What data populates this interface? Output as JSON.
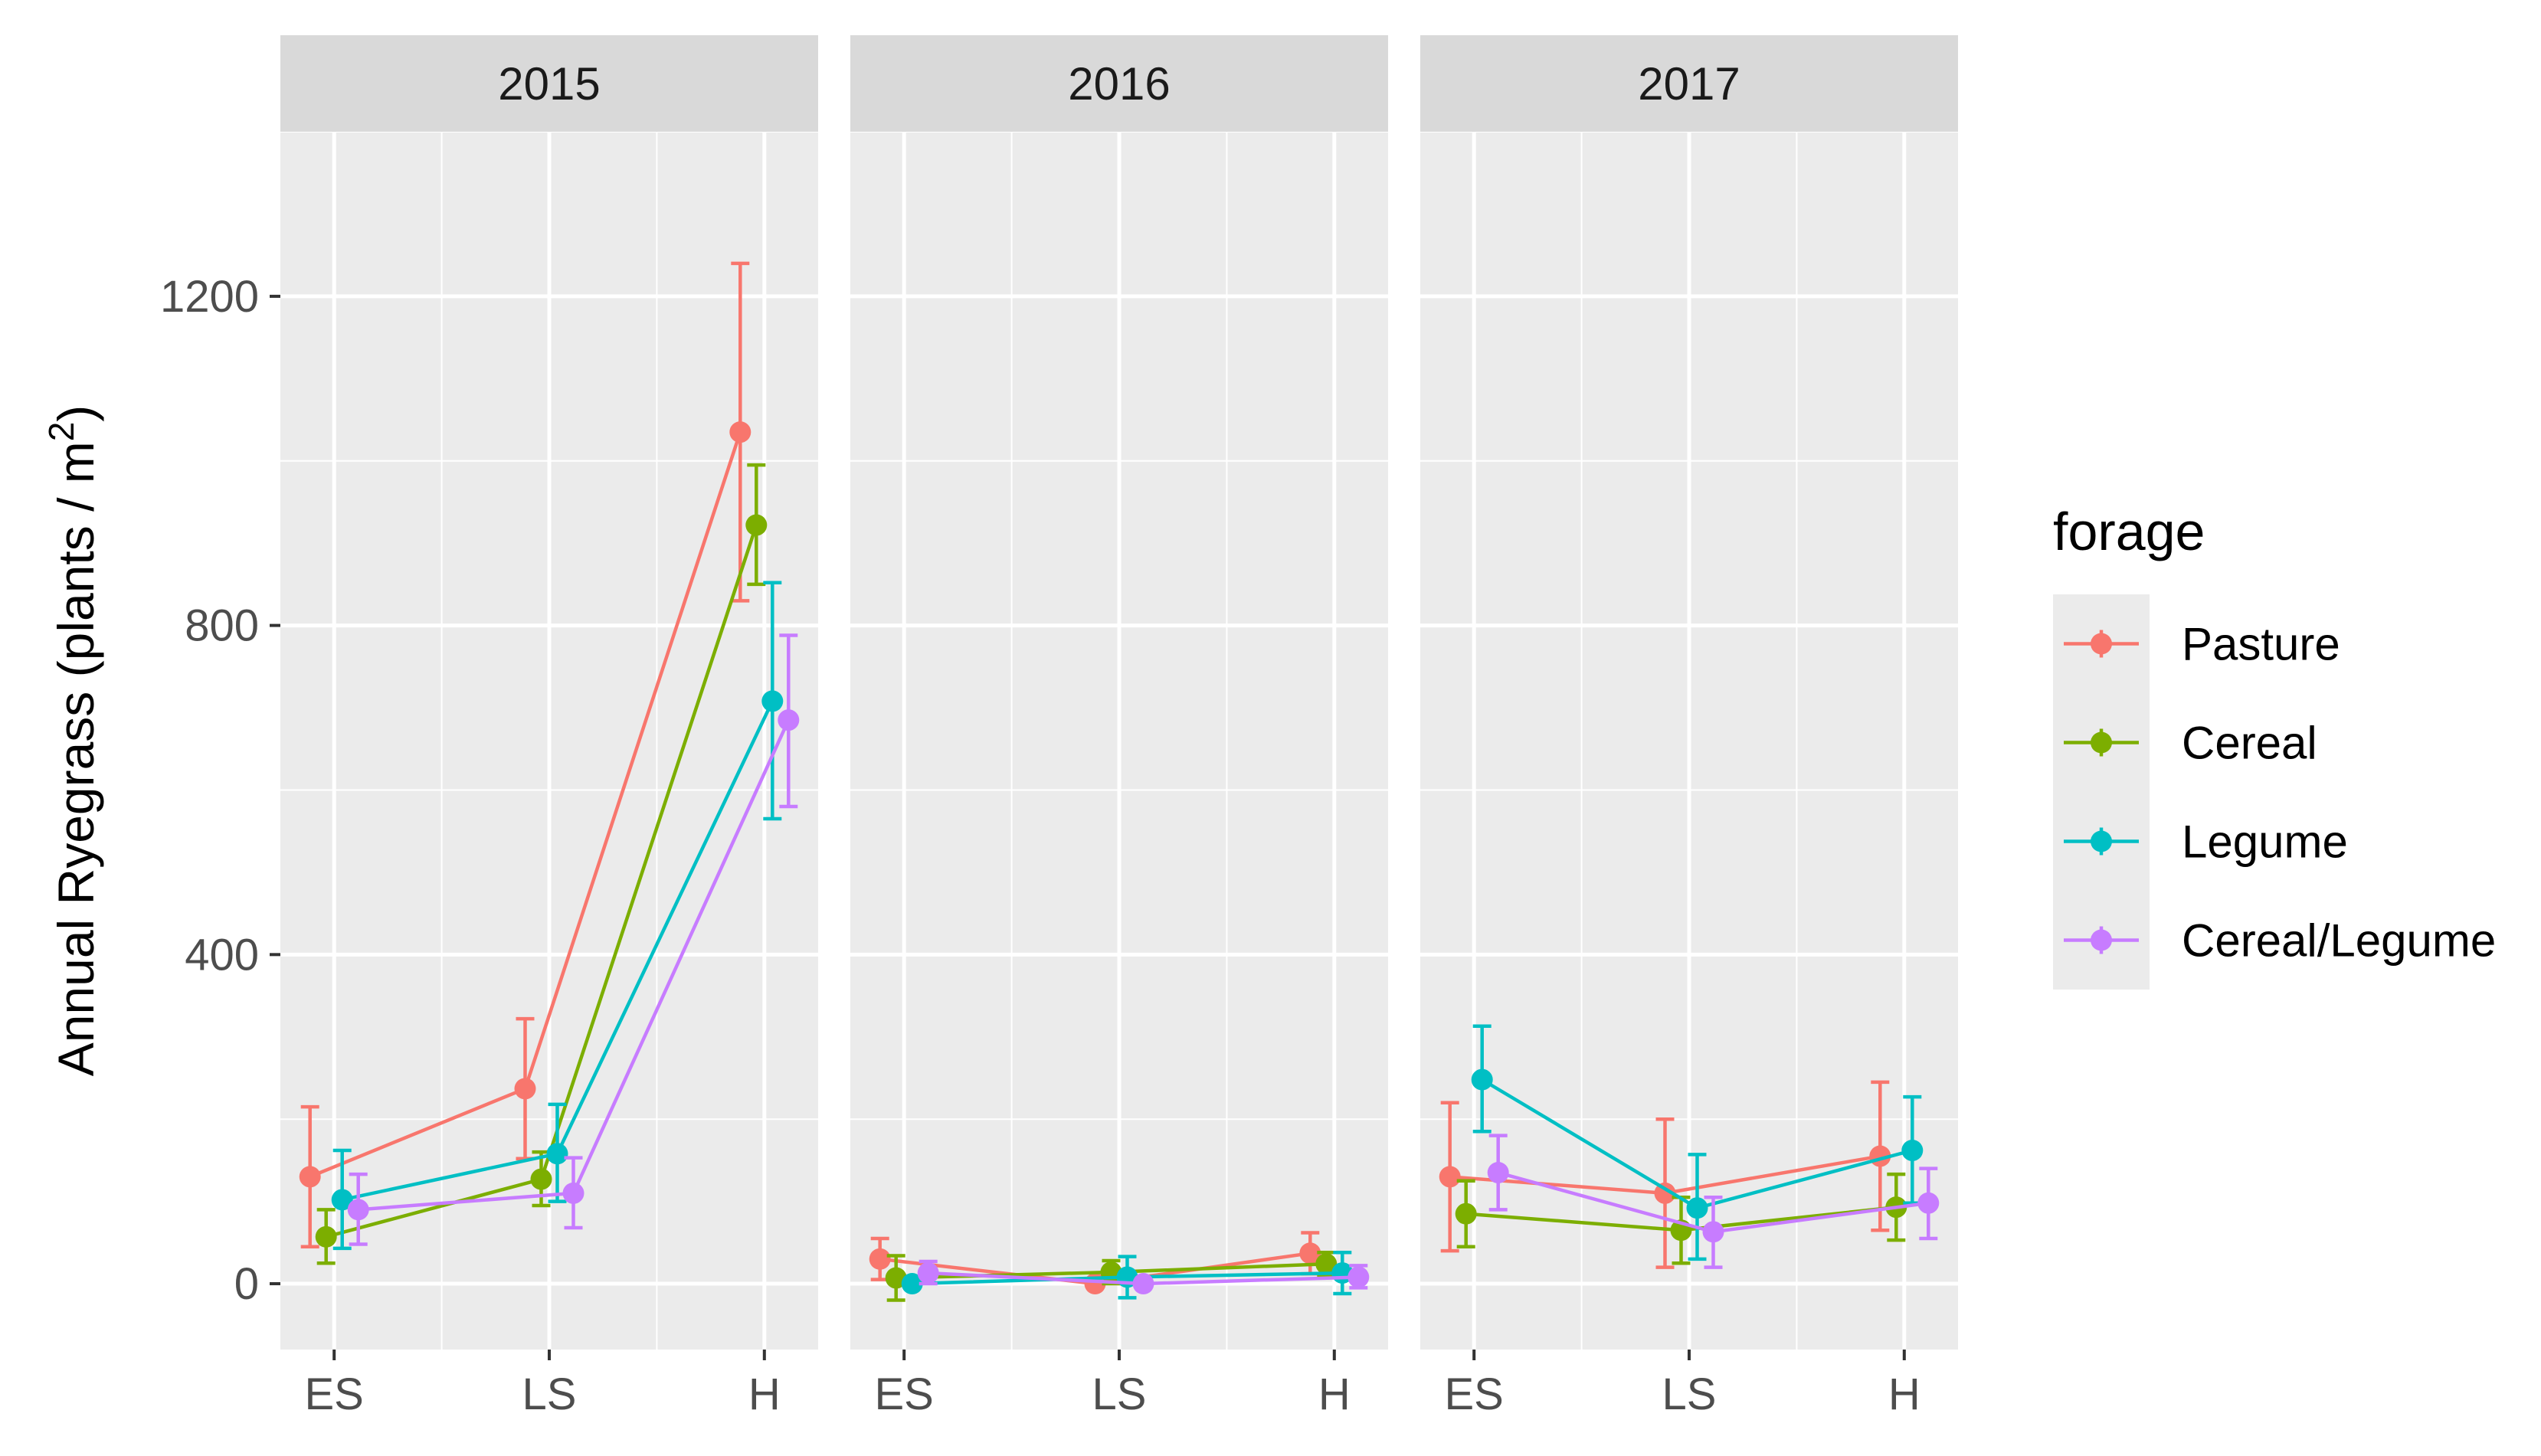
{
  "chart_data": {
    "type": "line",
    "facet_variable": "year",
    "panels": [
      "2015",
      "2016",
      "2017"
    ],
    "categories": [
      "ES",
      "LS",
      "H"
    ],
    "ylabel_main": "Annual Ryegrass (plants / m",
    "ylabel_sup": "2",
    "ylabel_tail": ")",
    "xlabel": "",
    "ylim": [
      -80,
      1400
    ],
    "yticks": [
      0,
      400,
      800,
      1200
    ],
    "ytick_labels": [
      "0",
      "400",
      "800",
      "1200"
    ],
    "legend_title": "forage",
    "legend_position": "right",
    "series": [
      {
        "name": "Pasture",
        "color": "#F8766D",
        "data": {
          "2015": [
            {
              "y": 130,
              "lo": 45,
              "hi": 215
            },
            {
              "y": 237,
              "lo": 152,
              "hi": 322
            },
            {
              "y": 1035,
              "lo": 830,
              "hi": 1240
            }
          ],
          "2016": [
            {
              "y": 30,
              "lo": 5,
              "hi": 55
            },
            {
              "y": 0,
              "lo": 0,
              "hi": 0
            },
            {
              "y": 37,
              "lo": 12,
              "hi": 62
            }
          ],
          "2017": [
            {
              "y": 130,
              "lo": 40,
              "hi": 220
            },
            {
              "y": 110,
              "lo": 20,
              "hi": 200
            },
            {
              "y": 155,
              "lo": 65,
              "hi": 245
            }
          ]
        }
      },
      {
        "name": "Cereal",
        "color": "#7CAE00",
        "data": {
          "2015": [
            {
              "y": 57,
              "lo": 25,
              "hi": 90
            },
            {
              "y": 127,
              "lo": 95,
              "hi": 160
            },
            {
              "y": 922,
              "lo": 850,
              "hi": 995
            }
          ],
          "2016": [
            {
              "y": 7,
              "lo": -20,
              "hi": 34
            },
            {
              "y": 14,
              "lo": 0,
              "hi": 28
            },
            {
              "y": 24,
              "lo": 10,
              "hi": 38
            }
          ],
          "2017": [
            {
              "y": 85,
              "lo": 45,
              "hi": 125
            },
            {
              "y": 65,
              "lo": 25,
              "hi": 105
            },
            {
              "y": 93,
              "lo": 53,
              "hi": 133
            }
          ]
        }
      },
      {
        "name": "Legume",
        "color": "#00BFC4",
        "data": {
          "2015": [
            {
              "y": 102,
              "lo": 43,
              "hi": 162
            },
            {
              "y": 158,
              "lo": 100,
              "hi": 218
            },
            {
              "y": 708,
              "lo": 565,
              "hi": 852
            }
          ],
          "2016": [
            {
              "y": 0,
              "lo": 0,
              "hi": 0
            },
            {
              "y": 8,
              "lo": -17,
              "hi": 33
            },
            {
              "y": 13,
              "lo": -12,
              "hi": 38
            }
          ],
          "2017": [
            {
              "y": 248,
              "lo": 185,
              "hi": 313
            },
            {
              "y": 92,
              "lo": 30,
              "hi": 157
            },
            {
              "y": 162,
              "lo": 98,
              "hi": 227
            }
          ]
        }
      },
      {
        "name": "Cereal/Legume",
        "color": "#C77CFF",
        "data": {
          "2015": [
            {
              "y": 90,
              "lo": 48,
              "hi": 133
            },
            {
              "y": 110,
              "lo": 68,
              "hi": 153
            },
            {
              "y": 685,
              "lo": 580,
              "hi": 788
            }
          ],
          "2016": [
            {
              "y": 13,
              "lo": 0,
              "hi": 27
            },
            {
              "y": 0,
              "lo": 0,
              "hi": 0
            },
            {
              "y": 8,
              "lo": -5,
              "hi": 22
            }
          ],
          "2017": [
            {
              "y": 135,
              "lo": 90,
              "hi": 180
            },
            {
              "y": 63,
              "lo": 20,
              "hi": 105
            },
            {
              "y": 98,
              "lo": 55,
              "hi": 140
            }
          ]
        }
      }
    ]
  }
}
